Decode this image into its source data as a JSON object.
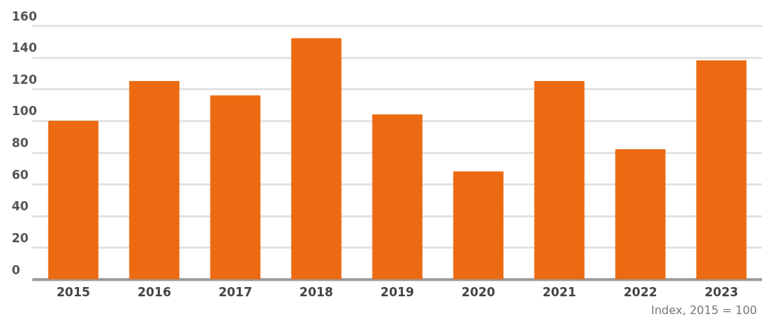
{
  "chart_data": {
    "type": "bar",
    "categories": [
      "2015",
      "2016",
      "2017",
      "2018",
      "2019",
      "2020",
      "2021",
      "2022",
      "2023"
    ],
    "values": [
      100,
      125,
      116,
      152,
      104,
      68,
      125,
      82,
      138
    ],
    "color": "#ec6b12",
    "ylim": [
      0,
      160
    ],
    "yticks": [
      0,
      20,
      40,
      60,
      80,
      100,
      120,
      140,
      160
    ],
    "grid": "y",
    "annotations": [
      "Index, 2015 = 100"
    ]
  }
}
